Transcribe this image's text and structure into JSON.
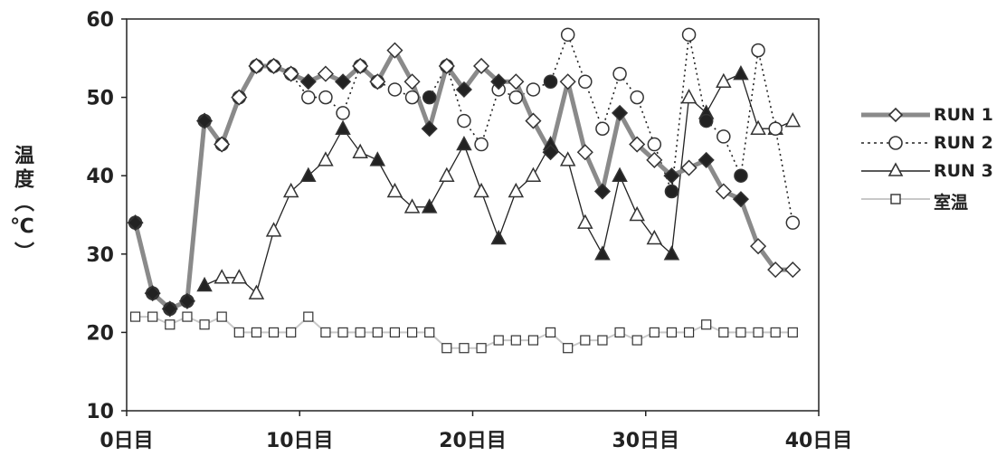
{
  "chart_data": {
    "type": "line",
    "title": "",
    "xlabel": "",
    "ylabel": "温度（℃）",
    "xlim": [
      0,
      40
    ],
    "ylim": [
      10,
      60
    ],
    "x_ticks": [
      {
        "value": 0,
        "label": "0日目"
      },
      {
        "value": 10,
        "label": "10日目"
      },
      {
        "value": 20,
        "label": "20日目"
      },
      {
        "value": 30,
        "label": "30日目"
      },
      {
        "value": 40,
        "label": "40日目"
      }
    ],
    "y_ticks": [
      10,
      20,
      30,
      40,
      50,
      60
    ],
    "grid": false,
    "legend_position": "right",
    "series": [
      {
        "name": "RUN 1",
        "style": "thick-gray",
        "marker": "diamond",
        "points": [
          [
            0.5,
            34,
            1
          ],
          [
            1.5,
            25,
            1
          ],
          [
            2.5,
            23,
            1
          ],
          [
            3.5,
            24,
            1
          ],
          [
            4.5,
            47,
            1
          ],
          [
            5.5,
            44,
            0
          ],
          [
            6.5,
            50,
            0
          ],
          [
            7.5,
            54,
            0
          ],
          [
            8.5,
            54,
            0
          ],
          [
            9.5,
            53,
            0
          ],
          [
            10.5,
            52,
            1
          ],
          [
            11.5,
            53,
            0
          ],
          [
            12.5,
            52,
            1
          ],
          [
            13.5,
            54,
            0
          ],
          [
            14.5,
            52,
            0
          ],
          [
            15.5,
            56,
            0
          ],
          [
            16.5,
            52,
            0
          ],
          [
            17.5,
            46,
            1
          ],
          [
            18.5,
            54,
            0
          ],
          [
            19.5,
            51,
            1
          ],
          [
            20.5,
            54,
            0
          ],
          [
            21.5,
            52,
            1
          ],
          [
            22.5,
            52,
            0
          ],
          [
            23.5,
            47,
            0
          ],
          [
            24.5,
            43,
            1
          ],
          [
            25.5,
            52,
            0
          ],
          [
            26.5,
            43,
            0
          ],
          [
            27.5,
            38,
            1
          ],
          [
            28.5,
            48,
            1
          ],
          [
            29.5,
            44,
            0
          ],
          [
            30.5,
            42,
            0
          ],
          [
            31.5,
            40,
            1
          ],
          [
            32.5,
            41,
            0
          ],
          [
            33.5,
            42,
            1
          ],
          [
            34.5,
            38,
            0
          ],
          [
            35.5,
            37,
            1
          ],
          [
            36.5,
            31,
            0
          ],
          [
            37.5,
            28,
            0
          ],
          [
            38.5,
            28,
            0
          ]
        ]
      },
      {
        "name": "RUN 2",
        "style": "dotted",
        "marker": "circle",
        "points": [
          [
            0.5,
            34,
            1
          ],
          [
            1.5,
            25,
            1
          ],
          [
            2.5,
            23,
            1
          ],
          [
            3.5,
            24,
            1
          ],
          [
            4.5,
            47,
            1
          ],
          [
            5.5,
            44,
            0
          ],
          [
            6.5,
            50,
            0
          ],
          [
            7.5,
            54,
            0
          ],
          [
            8.5,
            54,
            0
          ],
          [
            9.5,
            53,
            0
          ],
          [
            10.5,
            50,
            0
          ],
          [
            11.5,
            50,
            0
          ],
          [
            12.5,
            48,
            0
          ],
          [
            13.5,
            54,
            0
          ],
          [
            14.5,
            52,
            0
          ],
          [
            15.5,
            51,
            0
          ],
          [
            16.5,
            50,
            0
          ],
          [
            17.5,
            50,
            1
          ],
          [
            18.5,
            54,
            0
          ],
          [
            19.5,
            47,
            0
          ],
          [
            20.5,
            44,
            0
          ],
          [
            21.5,
            51,
            0
          ],
          [
            22.5,
            50,
            0
          ],
          [
            23.5,
            51,
            0
          ],
          [
            24.5,
            52,
            1
          ],
          [
            25.5,
            58,
            0
          ],
          [
            26.5,
            52,
            0
          ],
          [
            27.5,
            46,
            0
          ],
          [
            28.5,
            53,
            0
          ],
          [
            29.5,
            50,
            0
          ],
          [
            30.5,
            44,
            0
          ],
          [
            31.5,
            38,
            1
          ],
          [
            32.5,
            58,
            0
          ],
          [
            33.5,
            47,
            1
          ],
          [
            34.5,
            45,
            0
          ],
          [
            35.5,
            40,
            1
          ],
          [
            36.5,
            56,
            0
          ],
          [
            37.5,
            46,
            0
          ],
          [
            38.5,
            34,
            0
          ]
        ]
      },
      {
        "name": "RUN 3",
        "style": "thin-solid",
        "marker": "triangle",
        "points": [
          [
            4.5,
            26,
            1
          ],
          [
            5.5,
            27,
            0
          ],
          [
            6.5,
            27,
            0
          ],
          [
            7.5,
            25,
            0
          ],
          [
            8.5,
            33,
            0
          ],
          [
            9.5,
            38,
            0
          ],
          [
            10.5,
            40,
            1
          ],
          [
            11.5,
            42,
            0
          ],
          [
            12.5,
            46,
            1
          ],
          [
            13.5,
            43,
            0
          ],
          [
            14.5,
            42,
            1
          ],
          [
            15.5,
            38,
            0
          ],
          [
            16.5,
            36,
            0
          ],
          [
            17.5,
            36,
            1
          ],
          [
            18.5,
            40,
            0
          ],
          [
            19.5,
            44,
            1
          ],
          [
            20.5,
            38,
            0
          ],
          [
            21.5,
            32,
            1
          ],
          [
            22.5,
            38,
            0
          ],
          [
            23.5,
            40,
            0
          ],
          [
            24.5,
            44,
            1
          ],
          [
            25.5,
            42,
            0
          ],
          [
            26.5,
            34,
            0
          ],
          [
            27.5,
            30,
            1
          ],
          [
            28.5,
            40,
            1
          ],
          [
            29.5,
            35,
            0
          ],
          [
            30.5,
            32,
            0
          ],
          [
            31.5,
            30,
            1
          ],
          [
            32.5,
            50,
            0
          ],
          [
            33.5,
            48,
            1
          ],
          [
            34.5,
            52,
            0
          ],
          [
            35.5,
            53,
            1
          ],
          [
            36.5,
            46,
            0
          ],
          [
            37.5,
            46,
            0
          ],
          [
            38.5,
            47,
            0
          ]
        ]
      },
      {
        "name": "室温",
        "style": "light-gray",
        "marker": "square",
        "points": [
          [
            0.5,
            22,
            0
          ],
          [
            1.5,
            22,
            0
          ],
          [
            2.5,
            21,
            0
          ],
          [
            3.5,
            22,
            0
          ],
          [
            4.5,
            21,
            0
          ],
          [
            5.5,
            22,
            0
          ],
          [
            6.5,
            20,
            0
          ],
          [
            7.5,
            20,
            0
          ],
          [
            8.5,
            20,
            0
          ],
          [
            9.5,
            20,
            0
          ],
          [
            10.5,
            22,
            0
          ],
          [
            11.5,
            20,
            0
          ],
          [
            12.5,
            20,
            0
          ],
          [
            13.5,
            20,
            0
          ],
          [
            14.5,
            20,
            0
          ],
          [
            15.5,
            20,
            0
          ],
          [
            16.5,
            20,
            0
          ],
          [
            17.5,
            20,
            0
          ],
          [
            18.5,
            18,
            0
          ],
          [
            19.5,
            18,
            0
          ],
          [
            20.5,
            18,
            0
          ],
          [
            21.5,
            19,
            0
          ],
          [
            22.5,
            19,
            0
          ],
          [
            23.5,
            19,
            0
          ],
          [
            24.5,
            20,
            0
          ],
          [
            25.5,
            18,
            0
          ],
          [
            26.5,
            19,
            0
          ],
          [
            27.5,
            19,
            0
          ],
          [
            28.5,
            20,
            0
          ],
          [
            29.5,
            19,
            0
          ],
          [
            30.5,
            20,
            0
          ],
          [
            31.5,
            20,
            0
          ],
          [
            32.5,
            20,
            0
          ],
          [
            33.5,
            21,
            0
          ],
          [
            34.5,
            20,
            0
          ],
          [
            35.5,
            20,
            0
          ],
          [
            36.5,
            20,
            0
          ],
          [
            37.5,
            20,
            0
          ],
          [
            38.5,
            20,
            0
          ]
        ]
      }
    ]
  }
}
